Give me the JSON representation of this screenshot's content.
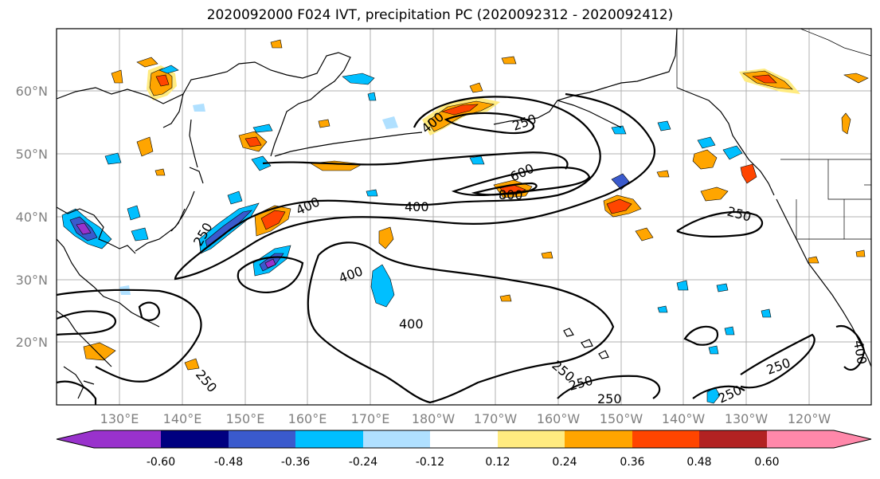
{
  "title": "2020092000 F024 IVT, precipitation PC (2020092312 - 2020092412)",
  "lat_labels": [
    "60°N",
    "50°N",
    "40°N",
    "30°N",
    "20°N"
  ],
  "lon_labels": [
    "130°E",
    "140°E",
    "150°E",
    "160°E",
    "170°E",
    "180°W",
    "170°W",
    "160°W",
    "150°W",
    "140°W",
    "130°W",
    "120°W"
  ],
  "colorbar": {
    "colors": [
      "#9932cc",
      "#000080",
      "#3a5acd",
      "#00bfff",
      "#b0e0ff",
      "#ffffff",
      "#ffeb80",
      "#ffa500",
      "#ff4500",
      "#b22222",
      "#ff88aa"
    ],
    "tick_labels": [
      "-0.60",
      "-0.48",
      "-0.36",
      "-0.24",
      "-0.12",
      "0.12",
      "0.24",
      "0.36",
      "0.48",
      "0.60"
    ]
  },
  "contour_labels": [
    "400",
    "250",
    "600",
    "800",
    "250",
    "400",
    "250",
    "400",
    "400",
    "400",
    "250",
    "250",
    "250",
    "250",
    "250",
    "250",
    "400"
  ]
}
